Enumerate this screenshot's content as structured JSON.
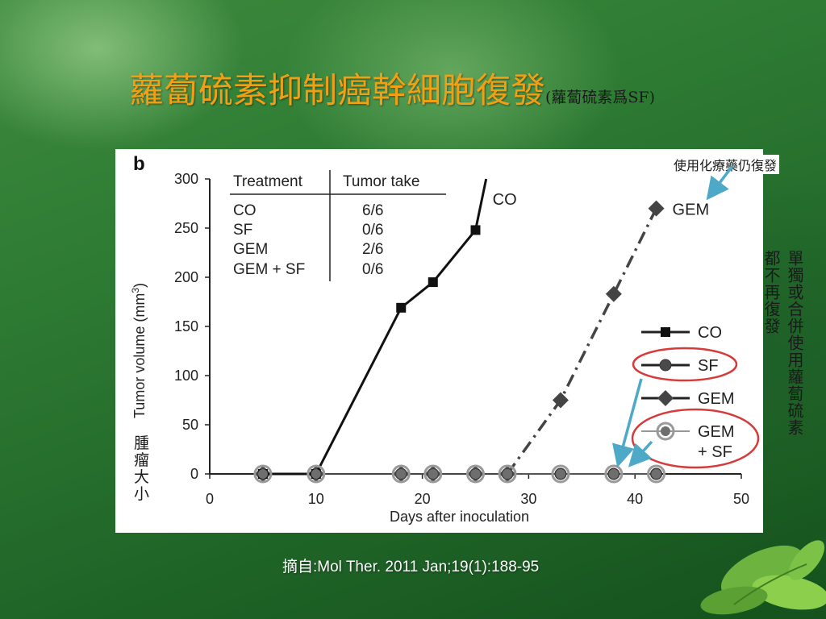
{
  "title": {
    "main": "蘿蔔硫素抑制癌幹細胞復發",
    "sub": "(蘿蔔硫素爲SF)"
  },
  "annotations": {
    "top_right": "使用化療藥仍復發",
    "col_a": "單獨或合併使用蘿蔔硫素",
    "col_b": "都不再復發",
    "tumor_size": "腫瘤大小"
  },
  "citation": "摘自:Mol Ther. 2011 Jan;19(1):188-95",
  "colors": {
    "title_orange": "#f0a012",
    "arrow_blue": "#4ea9c9",
    "circle_red": "#d63a3a"
  },
  "chart_data": {
    "type": "line",
    "panel_label": "b",
    "xlabel": "Days after inoculation",
    "ylabel": "Tumor volume (mm",
    "ylabel_sup": "3",
    "ylabel_close": ")",
    "xlim": [
      0,
      50
    ],
    "ylim": [
      0,
      300
    ],
    "xticks": [
      0,
      10,
      20,
      30,
      40,
      50
    ],
    "xtick_labels": [
      "0",
      "10",
      "20",
      "30",
      "40",
      "50"
    ],
    "yticks": [
      0,
      50,
      100,
      150,
      200,
      250,
      300
    ],
    "ytick_labels": [
      "0",
      "50",
      "100",
      "150",
      "200",
      "250",
      "300"
    ],
    "grid": false,
    "legend_position": "right",
    "series": [
      {
        "name": "CO",
        "marker": "square",
        "line": "solid",
        "color": "#111111",
        "end_label": "CO",
        "x": [
          5,
          10,
          18,
          21,
          25,
          26
        ],
        "y": [
          0,
          0,
          169,
          195,
          248,
          300
        ]
      },
      {
        "name": "SF",
        "marker": "circle",
        "line": "solid",
        "color": "#4a4a4a",
        "end_label": "",
        "x": [
          5,
          10,
          18,
          21,
          25,
          28,
          33,
          38,
          42
        ],
        "y": [
          0,
          0,
          0,
          0,
          0,
          0,
          0,
          0,
          0
        ]
      },
      {
        "name": "GEM",
        "marker": "diamond",
        "line": "dashdot",
        "color": "#444444",
        "end_label": "GEM",
        "x": [
          5,
          10,
          18,
          21,
          25,
          28,
          33,
          38,
          42
        ],
        "y": [
          0,
          0,
          0,
          0,
          0,
          0,
          75,
          183,
          270
        ]
      },
      {
        "name": "GEM + SF",
        "marker": "open-circle",
        "line": "solid",
        "color": "#888888",
        "end_label": "",
        "x": [
          5,
          10,
          18,
          21,
          25,
          28,
          33,
          38,
          42
        ],
        "y": [
          0,
          0,
          0,
          0,
          0,
          0,
          0,
          0,
          0
        ]
      }
    ],
    "legend": [
      {
        "label": "CO",
        "marker": "square"
      },
      {
        "label": "SF",
        "marker": "circle"
      },
      {
        "label": "GEM",
        "marker": "diamond"
      },
      {
        "label_lines": [
          "GEM",
          "+ SF"
        ],
        "marker": "open-circle"
      }
    ],
    "table": {
      "headers": [
        "Treatment",
        "Tumor take"
      ],
      "rows": [
        [
          "CO",
          "6/6"
        ],
        [
          "SF",
          "0/6"
        ],
        [
          "GEM",
          "2/6"
        ],
        [
          "GEM + SF",
          "0/6"
        ]
      ]
    }
  }
}
